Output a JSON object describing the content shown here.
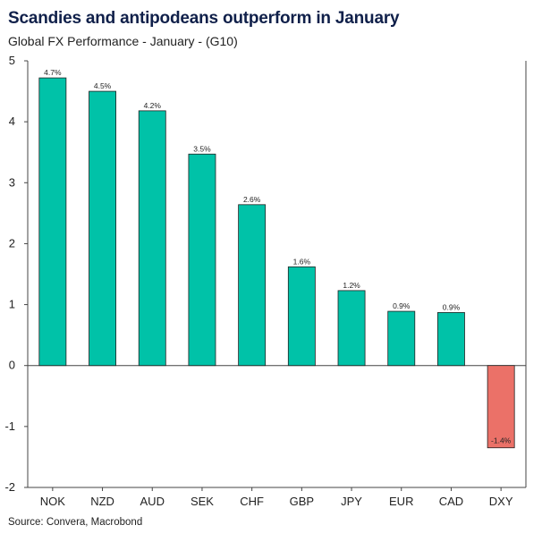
{
  "header": {
    "title": "Scandies and antipodeans outperform in January",
    "subtitle": "Global FX Performance - January - (G10)"
  },
  "footer": {
    "source": "Source: Convera, Macrobond"
  },
  "chart_data": {
    "type": "bar",
    "title": "Scandies and antipodeans outperform in January",
    "subtitle": "Global FX Performance - January - (G10)",
    "xlabel": "",
    "ylabel": "",
    "categories": [
      "NOK",
      "NZD",
      "AUD",
      "SEK",
      "CHF",
      "GBP",
      "JPY",
      "EUR",
      "CAD",
      "DXY"
    ],
    "values": [
      4.7,
      4.5,
      4.2,
      3.5,
      2.6,
      1.6,
      1.2,
      0.9,
      0.9,
      -1.4
    ],
    "plotted_values": [
      4.72,
      4.5,
      4.18,
      3.47,
      2.64,
      1.62,
      1.23,
      0.89,
      0.87,
      -1.35
    ],
    "data_labels": [
      "4.7%",
      "4.5%",
      "4.2%",
      "3.5%",
      "2.6%",
      "1.6%",
      "1.2%",
      "0.9%",
      "0.9%",
      "-1.4%"
    ],
    "ylim": [
      -2,
      5
    ],
    "yticks": [
      -2,
      -1,
      0,
      1,
      2,
      3,
      4,
      5
    ],
    "grid": false,
    "legend": "none",
    "colors": {
      "positive": "#00C2A8",
      "negative": "#EB7168",
      "bar_edge": "#222222",
      "axis": "#444444"
    }
  }
}
